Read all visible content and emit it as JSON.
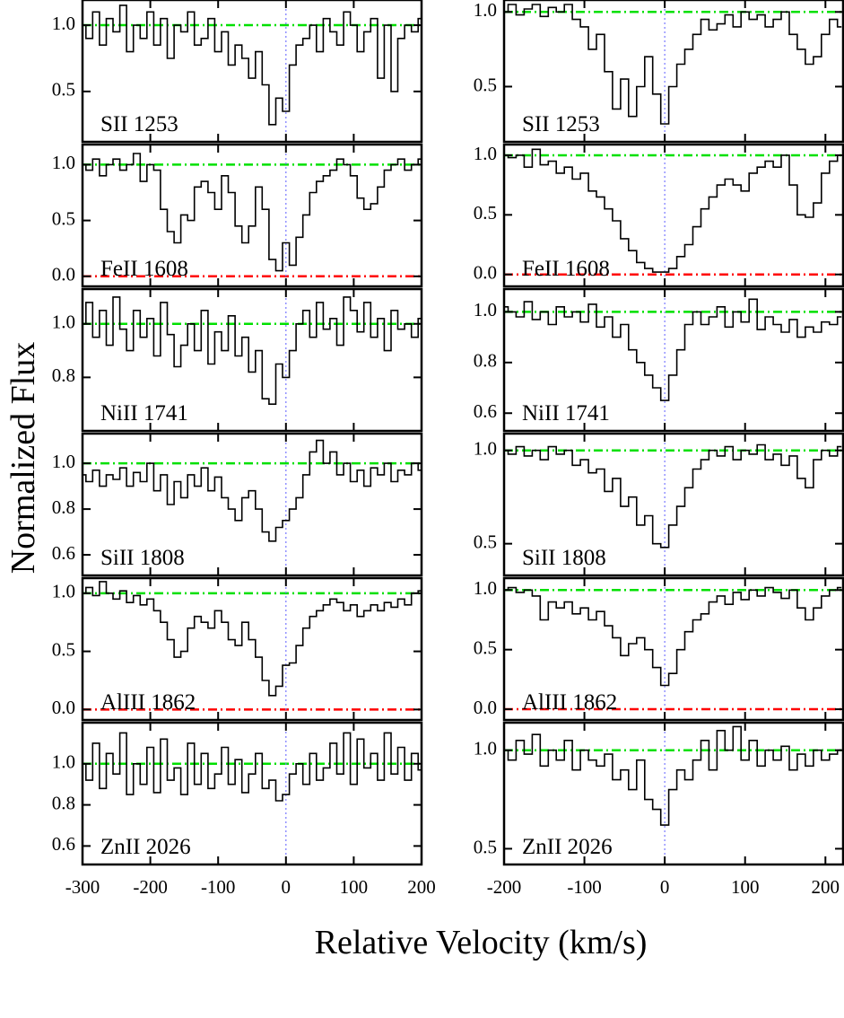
{
  "figure": {
    "xlabel": "Relative Velocity (km/s)",
    "ylabel": "Normalized Flux"
  },
  "style": {
    "line_color": "#000000",
    "continuum_color": "#00e000",
    "zero_color": "#ff0000",
    "v0_color": "#7777ff"
  },
  "chart_data": [
    {
      "type": "line",
      "xlim": [
        -300,
        200
      ],
      "xticks": [
        -300,
        -200,
        -100,
        0,
        100,
        200
      ],
      "v0": 0,
      "x": [
        -300,
        -290,
        -280,
        -270,
        -260,
        -250,
        -240,
        -230,
        -220,
        -210,
        -200,
        -190,
        -180,
        -170,
        -160,
        -150,
        -140,
        -130,
        -120,
        -110,
        -100,
        -90,
        -80,
        -70,
        -60,
        -50,
        -40,
        -30,
        -20,
        -10,
        0,
        10,
        20,
        30,
        40,
        50,
        60,
        70,
        80,
        90,
        100,
        110,
        120,
        130,
        140,
        150,
        160,
        170,
        180,
        190,
        200
      ],
      "panels": [
        {
          "label": "SII 1253",
          "ylim": [
            0.12,
            1.19
          ],
          "yticks": [
            0.5,
            {
              "value": 1,
              "label": "1.0"
            }
          ],
          "continuum": 1,
          "values": [
            1.0,
            0.9,
            1.1,
            0.85,
            1.05,
            0.95,
            1.15,
            0.8,
            1.0,
            0.9,
            1.1,
            0.85,
            1.05,
            0.75,
            1.0,
            0.95,
            1.1,
            0.85,
            0.9,
            1.05,
            0.8,
            0.95,
            0.7,
            0.85,
            0.75,
            0.6,
            0.8,
            0.55,
            0.25,
            0.45,
            0.35,
            0.7,
            0.85,
            0.9,
            1.0,
            0.8,
            1.05,
            0.95,
            0.85,
            1.1,
            1.0,
            0.8,
            0.95,
            1.05,
            0.6,
            1.0,
            0.5,
            0.9,
            1.0,
            0.95,
            1.05
          ]
        },
        {
          "label": "FeII 1608",
          "ylim": [
            -0.09,
            1.18
          ],
          "yticks": [
            {
              "value": 0,
              "label": "0.0"
            },
            0.5,
            {
              "value": 1,
              "label": "1.0"
            }
          ],
          "continuum": 1,
          "zero_level": 0,
          "values": [
            1.0,
            0.95,
            1.05,
            0.9,
            1.0,
            1.05,
            0.95,
            1.0,
            1.1,
            0.85,
            1.0,
            0.95,
            0.6,
            0.4,
            0.3,
            0.55,
            0.5,
            0.8,
            0.85,
            0.75,
            0.6,
            0.9,
            0.75,
            0.45,
            0.3,
            0.45,
            0.8,
            0.6,
            0.15,
            0.05,
            0.3,
            0.1,
            0.35,
            0.55,
            0.75,
            0.85,
            0.9,
            0.95,
            1.05,
            1.0,
            0.9,
            0.7,
            0.6,
            0.65,
            0.8,
            0.95,
            1.0,
            1.05,
            0.95,
            1.0,
            1.05
          ]
        },
        {
          "label": "NiII 1741",
          "ylim": [
            0.6,
            1.13
          ],
          "yticks": [
            0.8,
            {
              "value": 1,
              "label": "1.0"
            }
          ],
          "continuum": 1,
          "values": [
            1.0,
            1.08,
            0.95,
            1.05,
            0.92,
            1.1,
            0.98,
            0.9,
            1.05,
            0.95,
            1.02,
            0.88,
            1.08,
            0.96,
            0.84,
            0.92,
            1.0,
            0.9,
            1.05,
            0.85,
            0.97,
            0.9,
            1.03,
            0.88,
            0.95,
            0.82,
            0.9,
            0.72,
            0.7,
            0.85,
            0.8,
            0.9,
            1.0,
            1.05,
            0.95,
            1.08,
            0.98,
            1.02,
            0.92,
            1.1,
            1.05,
            0.97,
            1.08,
            0.95,
            1.02,
            0.9,
            1.05,
            0.98,
            1.0,
            0.95,
            1.02
          ]
        },
        {
          "label": "SiII 1808",
          "ylim": [
            0.51,
            1.13
          ],
          "yticks": [
            0.6,
            0.8,
            {
              "value": 1,
              "label": "1.0"
            }
          ],
          "continuum": 1,
          "values": [
            0.95,
            0.92,
            0.97,
            0.9,
            0.95,
            0.93,
            0.98,
            0.9,
            0.96,
            0.92,
            1.0,
            0.88,
            0.95,
            0.82,
            0.92,
            0.85,
            0.95,
            0.9,
            0.98,
            0.88,
            0.94,
            0.85,
            0.8,
            0.75,
            0.85,
            0.88,
            0.8,
            0.7,
            0.66,
            0.72,
            0.75,
            0.8,
            0.85,
            0.95,
            1.05,
            1.1,
            1.0,
            1.05,
            0.95,
            1.0,
            0.92,
            0.97,
            0.9,
            0.98,
            0.95,
            1.0,
            0.92,
            0.97,
            0.95,
            1.0,
            0.97
          ]
        },
        {
          "label": "AlIII 1862",
          "ylim": [
            -0.09,
            1.13
          ],
          "yticks": [
            {
              "value": 0,
              "label": "0.0"
            },
            0.5,
            {
              "value": 1,
              "label": "1.0"
            }
          ],
          "continuum": 1,
          "zero_level": 0,
          "values": [
            1.0,
            1.05,
            0.98,
            1.1,
            1.0,
            0.95,
            1.02,
            0.92,
            0.98,
            0.9,
            0.95,
            0.85,
            0.75,
            0.6,
            0.45,
            0.5,
            0.7,
            0.8,
            0.75,
            0.7,
            0.85,
            0.75,
            0.6,
            0.55,
            0.75,
            0.6,
            0.45,
            0.25,
            0.12,
            0.2,
            0.38,
            0.4,
            0.55,
            0.7,
            0.8,
            0.85,
            0.9,
            0.95,
            0.92,
            0.85,
            0.9,
            0.8,
            0.85,
            0.9,
            0.85,
            0.92,
            0.88,
            0.95,
            0.9,
            1.0,
            1.02
          ]
        },
        {
          "label": "ZnII 2026",
          "ylim": [
            0.51,
            1.2
          ],
          "yticks": [
            0.6,
            0.8,
            {
              "value": 1,
              "label": "1.0"
            }
          ],
          "continuum": 1,
          "values": [
            1.0,
            0.92,
            1.1,
            0.88,
            1.05,
            0.95,
            1.15,
            0.85,
            1.0,
            0.9,
            1.08,
            0.86,
            1.12,
            0.92,
            0.98,
            0.85,
            1.1,
            0.9,
            1.05,
            0.88,
            0.95,
            1.08,
            0.9,
            1.02,
            0.86,
            0.95,
            1.05,
            0.88,
            0.92,
            0.82,
            0.85,
            0.95,
            1.0,
            0.9,
            1.05,
            0.92,
            0.98,
            1.1,
            0.95,
            1.15,
            0.9,
            1.12,
            0.98,
            1.05,
            0.92,
            1.15,
            0.95,
            1.08,
            0.92,
            1.05,
            0.97
          ]
        }
      ]
    },
    {
      "type": "line",
      "xlim": [
        -200,
        222
      ],
      "xticks": [
        -200,
        -100,
        0,
        100,
        200
      ],
      "v0": 0,
      "x": [
        -200,
        -190,
        -180,
        -170,
        -160,
        -150,
        -140,
        -130,
        -120,
        -110,
        -100,
        -90,
        -80,
        -70,
        -60,
        -50,
        -40,
        -30,
        -20,
        -10,
        0,
        10,
        20,
        30,
        40,
        50,
        60,
        70,
        80,
        90,
        100,
        110,
        120,
        130,
        140,
        150,
        160,
        170,
        180,
        190,
        200,
        210,
        220
      ],
      "panels": [
        {
          "label": "SII 1253",
          "ylim": [
            0.13,
            1.08
          ],
          "yticks": [
            0.5,
            {
              "value": 1,
              "label": "1.0"
            }
          ],
          "continuum": 1,
          "values": [
            1.0,
            1.05,
            0.98,
            1.02,
            1.05,
            0.97,
            1.03,
            1.0,
            1.05,
            0.95,
            0.9,
            0.75,
            0.85,
            0.6,
            0.35,
            0.55,
            0.3,
            0.5,
            0.7,
            0.45,
            0.25,
            0.5,
            0.65,
            0.75,
            0.85,
            0.95,
            0.88,
            0.92,
            0.98,
            0.9,
            1.0,
            0.95,
            0.98,
            0.9,
            0.95,
            1.0,
            0.85,
            0.75,
            0.65,
            0.7,
            0.85,
            0.95,
            0.9
          ]
        },
        {
          "label": "FeII 1608",
          "ylim": [
            -0.1,
            1.09
          ],
          "yticks": [
            {
              "value": 0,
              "label": "0.0"
            },
            0.5,
            {
              "value": 1,
              "label": "1.0"
            }
          ],
          "continuum": 1,
          "zero_level": 0,
          "values": [
            1.0,
            0.98,
            1.0,
            0.9,
            1.05,
            0.92,
            0.95,
            0.85,
            0.9,
            0.8,
            0.85,
            0.7,
            0.65,
            0.55,
            0.45,
            0.3,
            0.2,
            0.1,
            0.05,
            0.02,
            0.02,
            0.05,
            0.15,
            0.25,
            0.4,
            0.55,
            0.65,
            0.75,
            0.8,
            0.75,
            0.7,
            0.85,
            0.9,
            0.95,
            0.9,
            1.0,
            0.75,
            0.5,
            0.48,
            0.6,
            0.85,
            0.95,
            1.0
          ]
        },
        {
          "label": "NiII 1741",
          "ylim": [
            0.53,
            1.09
          ],
          "yticks": [
            0.6,
            0.8,
            {
              "value": 1,
              "label": "1.0"
            }
          ],
          "continuum": 1,
          "values": [
            1.02,
            1.0,
            0.98,
            1.04,
            0.97,
            1.0,
            0.95,
            1.02,
            0.98,
            1.0,
            0.96,
            1.03,
            0.94,
            0.98,
            0.9,
            0.95,
            0.85,
            0.8,
            0.75,
            0.7,
            0.65,
            0.75,
            0.85,
            0.95,
            1.0,
            0.95,
            0.98,
            1.02,
            0.94,
            1.0,
            0.96,
            1.05,
            0.93,
            0.98,
            0.95,
            0.92,
            0.97,
            0.9,
            0.94,
            0.92,
            0.96,
            0.95,
            0.98
          ]
        },
        {
          "label": "SiII 1808",
          "ylim": [
            0.33,
            1.09
          ],
          "yticks": [
            0.5,
            {
              "value": 1,
              "label": "1.0"
            }
          ],
          "continuum": 1,
          "values": [
            1.0,
            0.98,
            1.02,
            0.97,
            1.0,
            0.95,
            1.02,
            0.98,
            1.0,
            0.92,
            0.95,
            0.88,
            0.9,
            0.78,
            0.85,
            0.7,
            0.75,
            0.6,
            0.65,
            0.5,
            0.48,
            0.6,
            0.7,
            0.8,
            0.9,
            0.95,
            1.0,
            0.97,
            1.02,
            0.95,
            1.0,
            0.98,
            1.03,
            0.95,
            0.98,
            0.92,
            0.97,
            0.85,
            0.8,
            0.95,
            1.0,
            0.97,
            1.02
          ]
        },
        {
          "label": "AlIII 1862",
          "ylim": [
            -0.09,
            1.1
          ],
          "yticks": [
            {
              "value": 0,
              "label": "0.0"
            },
            0.5,
            {
              "value": 1,
              "label": "1.0"
            }
          ],
          "continuum": 1,
          "zero_level": 0,
          "values": [
            1.0,
            1.02,
            0.98,
            1.0,
            0.95,
            0.75,
            0.9,
            0.85,
            0.9,
            0.8,
            0.85,
            0.75,
            0.82,
            0.7,
            0.6,
            0.45,
            0.55,
            0.6,
            0.5,
            0.35,
            0.2,
            0.3,
            0.5,
            0.65,
            0.75,
            0.8,
            0.9,
            0.95,
            0.88,
            0.98,
            0.92,
            1.0,
            0.95,
            1.02,
            0.98,
            0.93,
            1.0,
            0.85,
            0.75,
            0.85,
            0.95,
            1.0,
            1.02
          ]
        },
        {
          "label": "ZnII 2026",
          "ylim": [
            0.42,
            1.14
          ],
          "yticks": [
            0.5,
            {
              "value": 1,
              "label": "1.0"
            }
          ],
          "continuum": 1,
          "values": [
            1.0,
            0.95,
            1.05,
            0.98,
            1.08,
            0.92,
            1.0,
            0.95,
            1.05,
            0.9,
            1.0,
            0.95,
            0.92,
            0.98,
            0.85,
            0.9,
            0.8,
            0.95,
            0.75,
            0.7,
            0.62,
            0.8,
            0.9,
            0.85,
            0.95,
            1.05,
            0.9,
            1.1,
            1.0,
            1.12,
            0.95,
            1.05,
            0.92,
            1.0,
            0.95,
            1.02,
            0.9,
            0.98,
            0.92,
            1.0,
            0.95,
            0.98,
            1.0
          ]
        }
      ]
    }
  ]
}
